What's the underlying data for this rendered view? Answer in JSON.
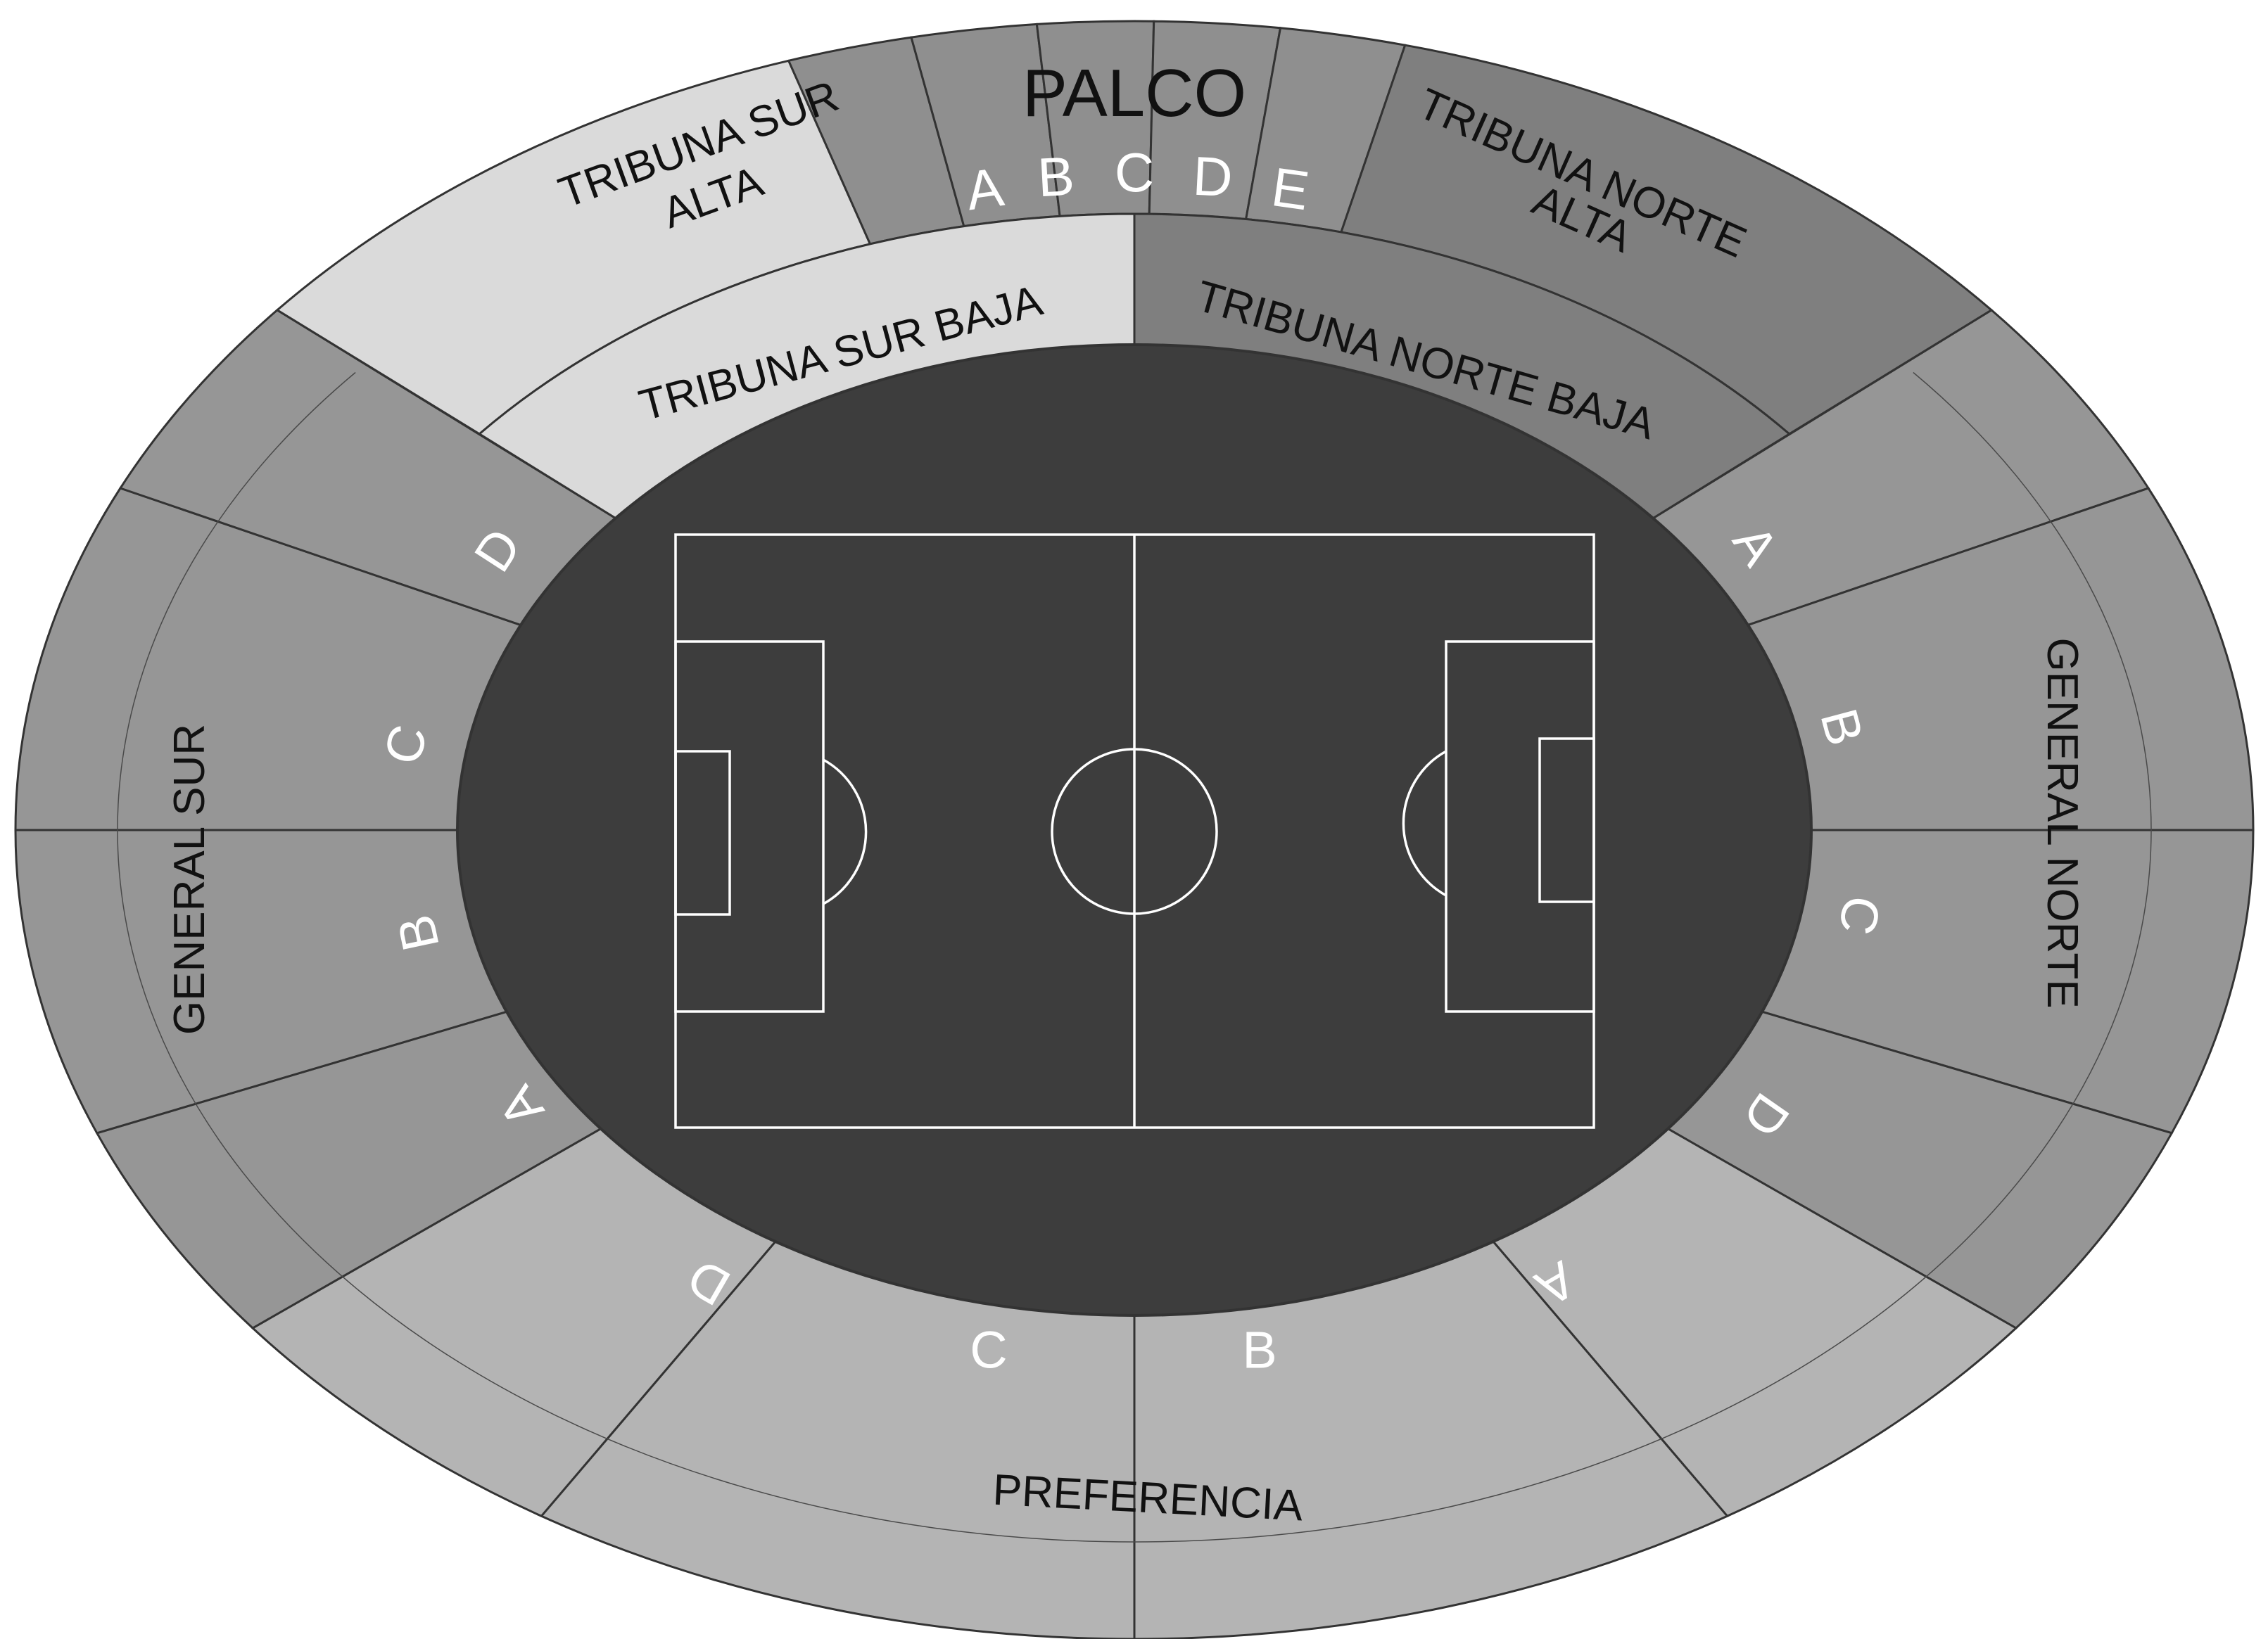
{
  "colors": {
    "general": "#969696",
    "preferencia": "#b4b4b4",
    "tribuna_sur": "#dadada",
    "tribuna_norte": "#7f7f7f",
    "palco": "#8f8f8f",
    "field": "#3d3d3d",
    "field_lines": "#ffffff",
    "outline": "#333333"
  },
  "sections": {
    "palco": {
      "title": "PALCO",
      "sub": [
        "A",
        "B",
        "C",
        "D",
        "E"
      ]
    },
    "tribuna_sur_alta": {
      "line1": "TRIBUNA SUR",
      "line2": "ALTA"
    },
    "tribuna_norte_alta": {
      "line1": "TRIBUNA NORTE",
      "line2": "ALTA"
    },
    "tribuna_sur_baja": "TRIBUNA SUR BAJA",
    "tribuna_norte_baja": "TRIBUNA NORTE BAJA",
    "general_sur": {
      "title": "GENERAL SUR",
      "sub": [
        "D",
        "C",
        "B",
        "A"
      ]
    },
    "general_norte": {
      "title": "GENERAL NORTE",
      "sub": [
        "A",
        "B",
        "C",
        "D"
      ]
    },
    "preferencia": {
      "title": "PREFERENCIA",
      "sub": [
        "D",
        "C",
        "B",
        "A"
      ]
    }
  }
}
